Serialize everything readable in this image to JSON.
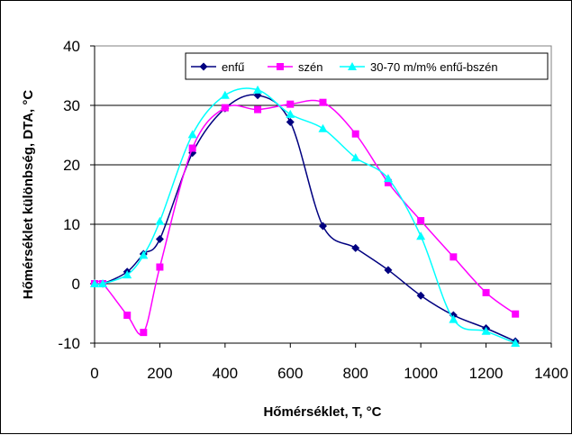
{
  "chart_data": {
    "type": "line",
    "title": "",
    "xlabel": "Hőmérséklet, T, °C",
    "ylabel": "Hőmérséklet különbség, DTA,  °C",
    "xlim": [
      0,
      1400
    ],
    "ylim": [
      -10,
      40
    ],
    "x_ticks": [
      0,
      200,
      400,
      600,
      800,
      1000,
      1200,
      1400
    ],
    "y_ticks": [
      -10,
      0,
      10,
      20,
      30,
      40
    ],
    "x_tick_labels": [
      "0",
      "200",
      "400",
      "600",
      "800",
      "1000",
      "1200",
      "1400"
    ],
    "y_tick_labels": [
      "-10",
      "0",
      "10",
      "20",
      "30",
      "40"
    ],
    "grid": "horizontal",
    "legend_position": "top-right",
    "series": [
      {
        "name": "enfű",
        "color": "#000080",
        "marker": "diamond",
        "x": [
          0,
          25,
          100,
          150,
          200,
          300,
          400,
          500,
          600,
          700,
          800,
          900,
          1000,
          1100,
          1200,
          1290
        ],
        "y": [
          0,
          0,
          2,
          5,
          7.5,
          22,
          29.5,
          31.7,
          27.2,
          9.7,
          6,
          2.3,
          -2,
          -5.3,
          -7.5,
          -9.7
        ]
      },
      {
        "name": "szén",
        "color": "#ff00ff",
        "marker": "square",
        "x": [
          0,
          25,
          100,
          150,
          200,
          300,
          400,
          500,
          600,
          700,
          800,
          900,
          1000,
          1100,
          1200,
          1290
        ],
        "y": [
          0,
          0,
          -5.3,
          -8.2,
          2.8,
          22.8,
          29.6,
          29.3,
          30.2,
          30.5,
          25.2,
          17,
          10.6,
          4.5,
          -1.5,
          -5.1
        ]
      },
      {
        "name": "30-70 m/m% enfű-bszén",
        "color": "#00ffff",
        "marker": "triangle",
        "x": [
          0,
          25,
          100,
          150,
          200,
          300,
          400,
          500,
          600,
          700,
          800,
          900,
          1000,
          1100,
          1200,
          1290
        ],
        "y": [
          0,
          0,
          1.5,
          4.8,
          10.5,
          25.1,
          31.7,
          32.6,
          28.5,
          26.1,
          21.2,
          17.7,
          8,
          -6,
          -8,
          -10
        ]
      }
    ]
  }
}
